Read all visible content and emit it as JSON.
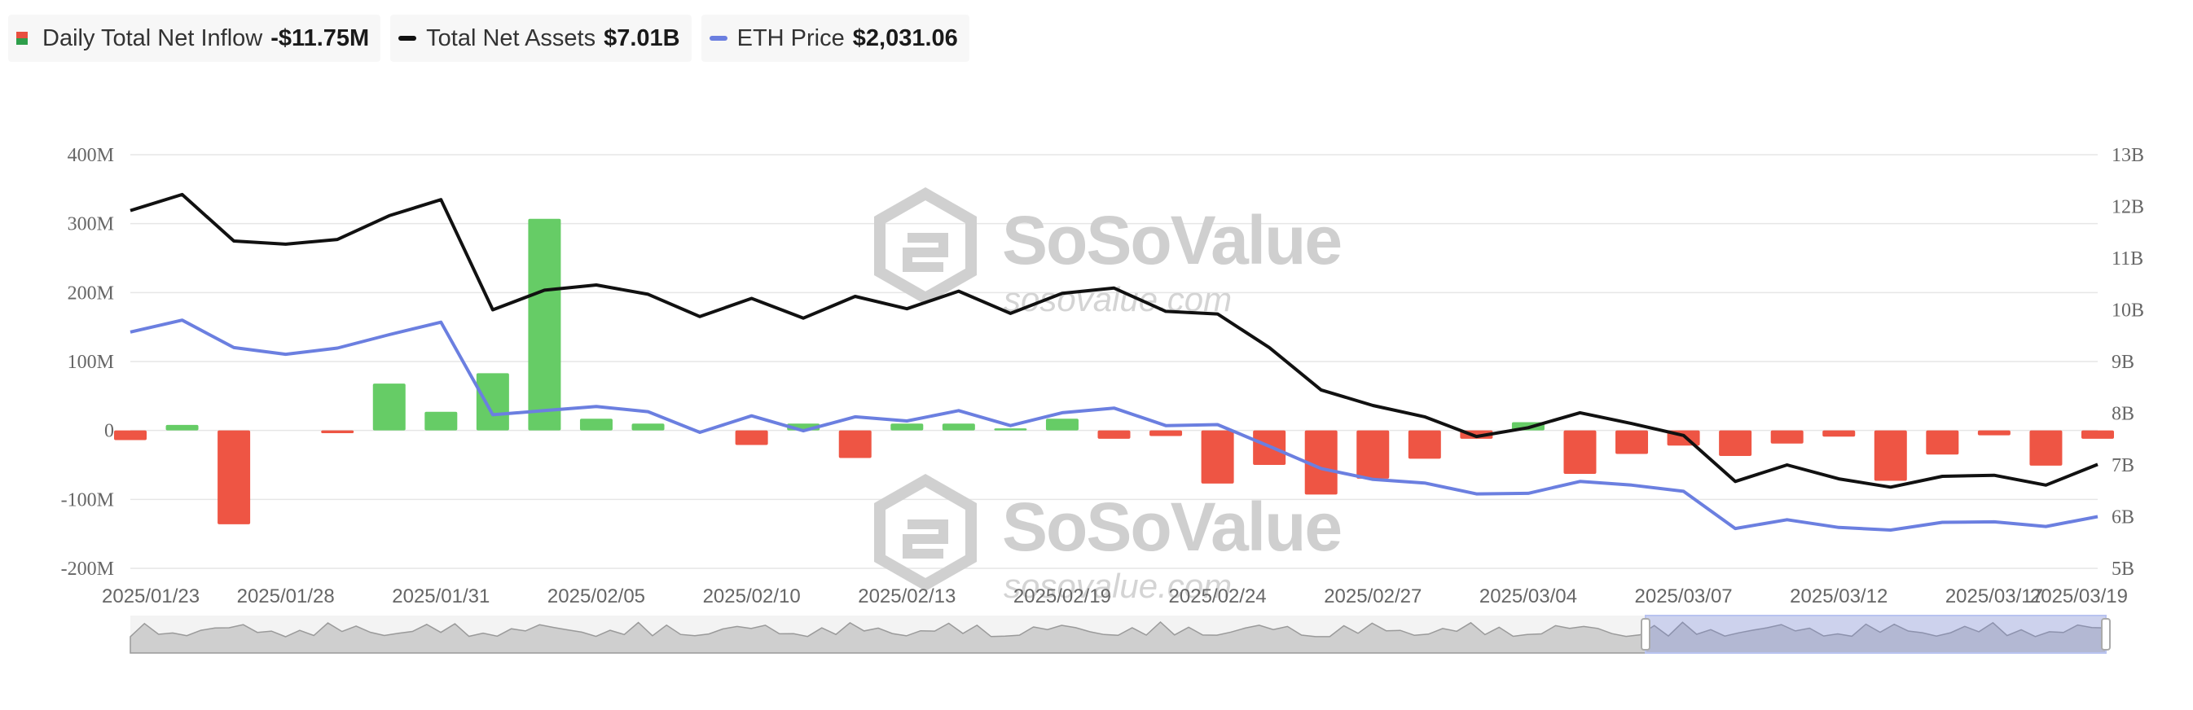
{
  "legend": [
    {
      "label": "Daily Total Net Inflow",
      "value": "-$11.75M",
      "icon": "bar-swatch-icon"
    },
    {
      "label": "Total Net Assets",
      "value": "$7.01B",
      "color": "#111111",
      "icon": "line-swatch-icon"
    },
    {
      "label": "ETH Price",
      "value": "$2,031.06",
      "color": "#6b7fe0",
      "icon": "line-swatch-icon"
    }
  ],
  "watermark": {
    "brand": "SoSoValue",
    "url": "sosovalue.com"
  },
  "colors": {
    "positive": "#66cc66",
    "negative": "#ee5544",
    "assets": "#111111",
    "price": "#6b7fe0",
    "grid": "#e6e6e6"
  },
  "chart_data": {
    "type": "bar",
    "x": [
      "2025/01/23",
      "2025/01/24",
      "2025/01/27",
      "2025/01/28",
      "2025/01/29",
      "2025/01/30",
      "2025/01/31",
      "2025/02/03",
      "2025/02/04",
      "2025/02/05",
      "2025/02/06",
      "2025/02/07",
      "2025/02/10",
      "2025/02/11",
      "2025/02/12",
      "2025/02/13",
      "2025/02/14",
      "2025/02/18",
      "2025/02/19",
      "2025/02/20",
      "2025/02/21",
      "2025/02/24",
      "2025/02/25",
      "2025/02/26",
      "2025/02/27",
      "2025/02/28",
      "2025/03/03",
      "2025/03/04",
      "2025/03/05",
      "2025/03/06",
      "2025/03/07",
      "2025/03/10",
      "2025/03/11",
      "2025/03/12",
      "2025/03/13",
      "2025/03/14",
      "2025/03/17",
      "2025/03/18",
      "2025/03/19"
    ],
    "x_tick_labels": [
      "2025/01/23",
      "2025/01/28",
      "2025/01/31",
      "2025/02/05",
      "2025/02/10",
      "2025/02/13",
      "2025/02/19",
      "2025/02/24",
      "2025/02/27",
      "2025/03/04",
      "2025/03/07",
      "2025/03/12",
      "2025/03/17",
      "2025/03/19"
    ],
    "series": [
      {
        "name": "Daily Total Net Inflow",
        "type": "bar",
        "axis": "left",
        "values": [
          -14,
          8,
          -136,
          0,
          -4,
          68,
          27,
          83,
          307,
          17,
          10,
          0,
          -21,
          10,
          -40,
          10,
          10,
          3,
          17,
          -12,
          -8,
          -77,
          -50,
          -93,
          -70,
          -41,
          -12,
          12,
          -63,
          -34,
          -22,
          -37,
          -19,
          -9,
          -73,
          -35,
          -7,
          -51,
          -12
        ]
      },
      {
        "name": "Total Net Assets",
        "type": "line",
        "axis": "right",
        "values": [
          11.92,
          12.23,
          11.33,
          11.27,
          11.36,
          11.82,
          12.13,
          10.0,
          10.38,
          10.48,
          10.3,
          9.87,
          10.22,
          9.84,
          10.26,
          10.02,
          10.36,
          9.93,
          10.32,
          10.42,
          9.97,
          9.92,
          9.27,
          8.45,
          8.15,
          7.93,
          7.55,
          7.72,
          8.01,
          7.8,
          7.57,
          6.68,
          7.0,
          6.73,
          6.57,
          6.78,
          6.8,
          6.61,
          7.01
        ]
      },
      {
        "name": "ETH Price",
        "type": "line",
        "axis": "right",
        "values": [
          9.57,
          9.8,
          9.27,
          9.14,
          9.26,
          9.52,
          9.76,
          7.97,
          8.05,
          8.13,
          8.03,
          7.63,
          7.95,
          7.66,
          7.93,
          7.85,
          8.05,
          7.76,
          8.01,
          8.1,
          7.76,
          7.78,
          7.36,
          6.93,
          6.72,
          6.65,
          6.44,
          6.45,
          6.68,
          6.61,
          6.49,
          5.77,
          5.94,
          5.79,
          5.74,
          5.89,
          5.9,
          5.81,
          6.0
        ]
      }
    ],
    "y_left": {
      "ticks": [
        "400M",
        "300M",
        "200M",
        "100M",
        "0",
        "-100M",
        "-200M"
      ],
      "min": -200,
      "max": 400
    },
    "y_right": {
      "ticks": [
        "13B",
        "12B",
        "11B",
        "10B",
        "9B",
        "8B",
        "7B",
        "6B",
        "5B"
      ],
      "min": 5,
      "max": 13
    },
    "navigator_range": [
      "2025/01/23",
      "2025/03/19"
    ]
  }
}
